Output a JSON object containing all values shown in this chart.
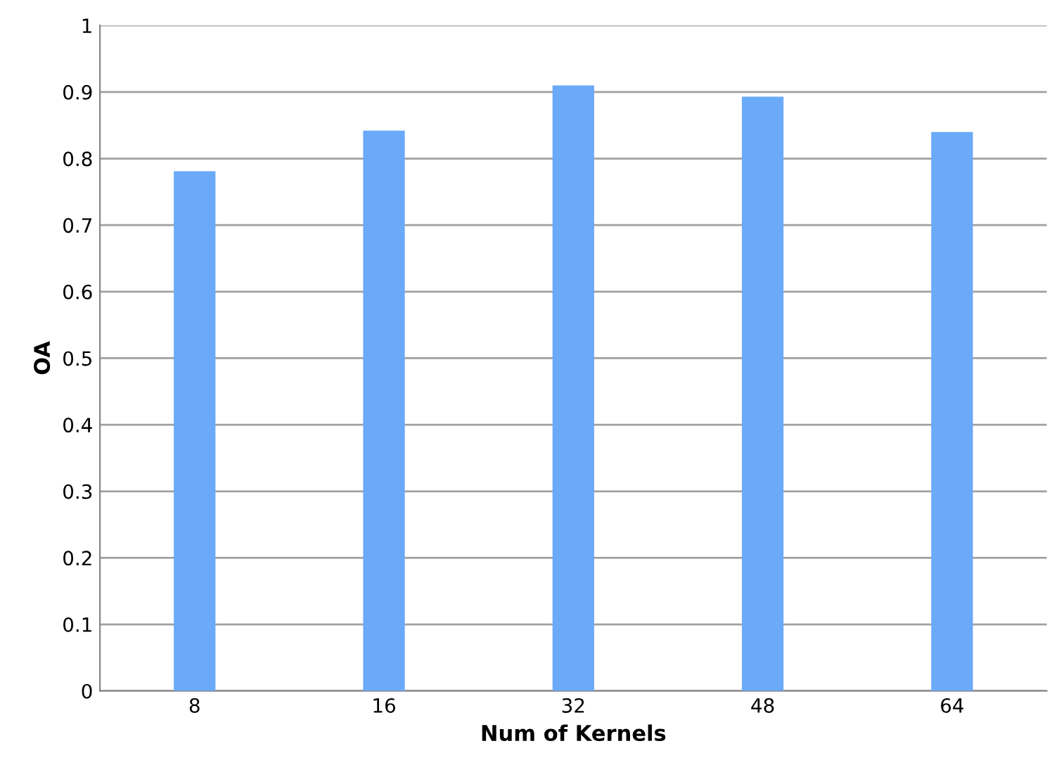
{
  "chart_data": {
    "type": "bar",
    "xlabel": "Num of Kernels",
    "ylabel": "OA",
    "categories": [
      "8",
      "16",
      "32",
      "48",
      "64"
    ],
    "values": [
      0.781,
      0.842,
      0.91,
      0.893,
      0.84
    ],
    "color": "#6aaaf8",
    "ylim": [
      0,
      1
    ],
    "yticks": [
      0,
      0.1,
      0.2,
      0.3,
      0.4,
      0.5,
      0.6,
      0.7,
      0.8,
      0.9,
      1
    ],
    "grid": "y",
    "legend": false
  }
}
